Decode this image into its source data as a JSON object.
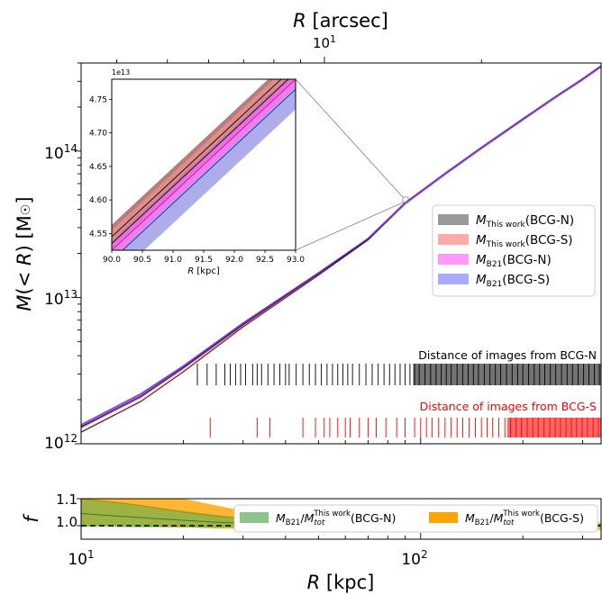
{
  "chart_data": [
    {
      "type": "line",
      "panel": "main",
      "top_xlabel": "R [arcsec]",
      "top_tick_labels": [
        {
          "value": 10,
          "label": "10^1"
        }
      ],
      "ylabel": "M(<R) [M☉]",
      "xscale": "log",
      "yscale": "log",
      "xlim": [
        10,
        340
      ],
      "ylim": [
        1000000000000.0,
        400000000000000.0
      ],
      "ytick_labels": [
        {
          "value": 1000000000000.0,
          "label": "10^12"
        },
        {
          "value": 10000000000000.0,
          "label": "10^13"
        },
        {
          "value": 100000000000000.0,
          "label": "10^14"
        }
      ],
      "x": [
        10,
        15,
        20,
        30,
        50,
        70,
        90,
        120,
        150,
        200,
        250,
        300,
        340
      ],
      "series": [
        {
          "name": "M_This work(BCG-N)",
          "color": "#808080",
          "values": [
            1300000000000.0,
            2100000000000.0,
            3300000000000.0,
            6500000000000.0,
            14500000000000.0,
            25000000000000.0,
            44000000000000.0,
            72000000000000.0,
            104000000000000.0,
            165000000000000.0,
            235000000000000.0,
            310000000000000.0,
            380000000000000.0
          ]
        },
        {
          "name": "M_This work(BCG-S)",
          "color": "#ff9999",
          "values": [
            1200000000000.0,
            1950000000000.0,
            3100000000000.0,
            6300000000000.0,
            14200000000000.0,
            24800000000000.0,
            44000000000000.0,
            72000000000000.0,
            104000000000000.0,
            165000000000000.0,
            235000000000000.0,
            310000000000000.0,
            380000000000000.0
          ]
        },
        {
          "name": "M_B21(BCG-N)",
          "color": "#ff66ff",
          "values": [
            1320000000000.0,
            2150000000000.0,
            3350000000000.0,
            6600000000000.0,
            14600000000000.0,
            25100000000000.0,
            44000000000000.0,
            72000000000000.0,
            104000000000000.0,
            165000000000000.0,
            235000000000000.0,
            310000000000000.0,
            380000000000000.0
          ]
        },
        {
          "name": "M_B21(BCG-S)",
          "color": "#6666ff",
          "values": [
            1350000000000.0,
            2200000000000.0,
            3400000000000.0,
            6700000000000.0,
            14700000000000.0,
            25200000000000.0,
            44000000000000.0,
            72000000000000.0,
            104000000000000.0,
            165000000000000.0,
            235000000000000.0,
            310000000000000.0,
            380000000000000.0
          ]
        }
      ],
      "annotations": [
        {
          "text": "Distance of images from BCG-N",
          "color": "#000000"
        },
        {
          "text": "Distance of images from BCG-S",
          "color": "#ff0000"
        }
      ],
      "rug_bcg_n_kpc": [
        22,
        23.5,
        25,
        26.5,
        27.5,
        28.5,
        29.5,
        30.5,
        32,
        33,
        34,
        35.5,
        37,
        38.5,
        40,
        41,
        43,
        45,
        47,
        49,
        51,
        53,
        55,
        57,
        59,
        61,
        63,
        66,
        69,
        72,
        75,
        78,
        81,
        84,
        87,
        90,
        93,
        96,
        99,
        103,
        107,
        111,
        115,
        119,
        123,
        128,
        133,
        138,
        143,
        148,
        154,
        160,
        166,
        172,
        179,
        186,
        193,
        200,
        208,
        216,
        224,
        232,
        241,
        250,
        260,
        270,
        280,
        291,
        302,
        313,
        325,
        336
      ],
      "rug_bcg_s_kpc": [
        24,
        33,
        36,
        45,
        49,
        52,
        54,
        57,
        60,
        62,
        66,
        70,
        74,
        79,
        85,
        90,
        96,
        100,
        104,
        108,
        113,
        118,
        123,
        128,
        133,
        139,
        145,
        151,
        157,
        163,
        170,
        177,
        184,
        191,
        198,
        206,
        214,
        222,
        231,
        240,
        249,
        258,
        268,
        278,
        288,
        299,
        310,
        322,
        334
      ]
    },
    {
      "type": "line",
      "panel": "inset",
      "xlabel": "R [kpc]",
      "xlim": [
        90.0,
        93.0
      ],
      "ylim": [
        45250000000000.0,
        47800000000000.0
      ],
      "offset_label": "1e13",
      "xtick_labels": [
        "90.0",
        "90.5",
        "91.0",
        "91.5",
        "92.0",
        "92.5",
        "93.0"
      ],
      "ytick_labels": [
        "4.55",
        "4.60",
        "4.65",
        "4.70",
        "4.75"
      ],
      "x": [
        90.0,
        93.0
      ],
      "series": [
        {
          "name": "M_This work(BCG-N)",
          "color": "#a0524d",
          "values": [
            45450000000000.0,
            48000000000000.0
          ],
          "band": [
            180000000000.0,
            180000000000.0
          ]
        },
        {
          "name": "M_This work(BCG-S)",
          "color": "#ff9999",
          "values": [
            45350000000000.0,
            47900000000000.0
          ],
          "band": [
            200000000000.0,
            200000000000.0
          ]
        },
        {
          "name": "M_B21(BCG-N)",
          "color": "#ff66ff",
          "values": [
            45250000000000.0,
            47800000000000.0
          ],
          "band": [
            120000000000.0,
            120000000000.0
          ]
        },
        {
          "name": "M_B21(BCG-S)",
          "color": "#3333cc",
          "values": [
            45100000000000.0,
            47650000000000.0
          ],
          "band": [
            300000000000.0,
            300000000000.0
          ]
        }
      ]
    },
    {
      "type": "area",
      "panel": "ratio",
      "xlabel": "R [kpc]",
      "ylabel": "f",
      "xscale": "log",
      "xlim": [
        10,
        340
      ],
      "ylim": [
        0.95,
        1.1
      ],
      "xtick_labels": [
        {
          "value": 10,
          "label": "10^1"
        },
        {
          "value": 100,
          "label": "10^2"
        }
      ],
      "ytick_labels": [
        "1.0",
        "1.1"
      ],
      "reference_line": 1.0,
      "x": [
        10,
        12,
        15,
        20,
        25,
        30,
        40,
        50,
        70,
        100,
        150,
        200,
        300,
        340
      ],
      "series": [
        {
          "name": "M_B21/M_tot^This work(BCG-N)",
          "color": "#4caf50",
          "values": [
            1.045,
            1.038,
            1.03,
            1.02,
            1.013,
            1.009,
            1.004,
            1.002,
            1.001,
            1.0,
            1.0,
            1.001,
            1.003,
            1.003
          ],
          "upper": [
            1.1,
            1.09,
            1.075,
            1.055,
            1.04,
            1.03,
            1.018,
            1.012,
            1.008,
            1.006,
            1.006,
            1.008,
            1.01,
            1.012
          ],
          "lower": [
            0.995,
            0.995,
            0.993,
            0.993,
            0.992,
            0.993,
            0.993,
            0.994,
            0.995,
            0.995,
            0.995,
            0.995,
            0.996,
            0.995
          ]
        },
        {
          "name": "M_B21/M_tot^This work(BCG-S)",
          "color": "#ffa500",
          "values": [
            1.1,
            1.09,
            1.075,
            1.05,
            1.035,
            1.025,
            1.013,
            1.007,
            1.003,
            1.001,
            1.0,
            1.0,
            0.999,
            0.998
          ],
          "upper": [
            1.16,
            1.15,
            1.135,
            1.1,
            1.075,
            1.055,
            1.03,
            1.02,
            1.012,
            1.008,
            1.006,
            1.006,
            1.006,
            1.006
          ],
          "lower": [
            1.0,
            1.0,
            0.998,
            0.994,
            0.99,
            0.988,
            0.986,
            0.985,
            0.985,
            0.986,
            0.986,
            0.986,
            0.985,
            0.984
          ]
        }
      ]
    }
  ]
}
